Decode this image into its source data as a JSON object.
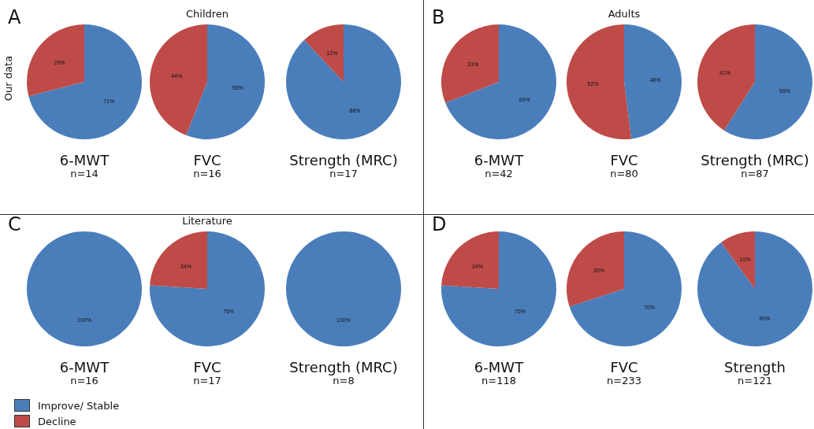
{
  "chart_data": [
    {
      "type": "pie",
      "title": "6-MWT",
      "subtitle": "n=14",
      "categories": [
        "Improve/ Stable",
        "Decline"
      ],
      "values": [
        71,
        29
      ],
      "colors": [
        "#4a7ebb",
        "#be4b48"
      ],
      "value_labels": [
        "71%",
        "29%"
      ],
      "annotations": [
        "A",
        "Children",
        "Our data"
      ],
      "legend": "bottom left"
    },
    {
      "type": "pie",
      "title": "FVC",
      "subtitle": "n=16",
      "categories": [
        null,
        null
      ],
      "values": [
        56,
        44
      ],
      "colors": [
        "#4a7ebb",
        "#be4b48"
      ],
      "value_labels": [
        "56%",
        "44%"
      ]
    },
    {
      "type": "pie",
      "title": "Strength (MRC)",
      "subtitle": "n=17",
      "categories": [
        null,
        null
      ],
      "values": [
        88,
        12
      ],
      "colors": [
        "#4a7ebb",
        "#be4b48"
      ],
      "value_labels": [
        "88%",
        "12%"
      ]
    },
    {
      "type": "pie",
      "title": "6-MWT",
      "subtitle": "n=42",
      "categories": [
        null,
        null
      ],
      "values": [
        69,
        31
      ],
      "colors": [
        "#4a7ebb",
        "#be4b48"
      ],
      "value_labels": [
        "69%",
        "31%"
      ],
      "annotations": [
        "B",
        "Adults"
      ]
    },
    {
      "type": "pie",
      "title": "FVC",
      "subtitle": "n=80",
      "categories": [
        null,
        null
      ],
      "values": [
        48,
        52
      ],
      "colors": [
        "#4a7ebb",
        "#be4b48"
      ],
      "value_labels": [
        "48%",
        "52%"
      ]
    },
    {
      "type": "pie",
      "title": "Strength (MRC)",
      "subtitle": "n=87",
      "categories": [
        null,
        null
      ],
      "values": [
        59,
        41
      ],
      "colors": [
        "#4a7ebb",
        "#be4b48"
      ],
      "value_labels": [
        "59%",
        "41%"
      ]
    },
    {
      "type": "pie",
      "title": "6-MWT",
      "subtitle": "n=16",
      "categories": [
        null
      ],
      "values": [
        100
      ],
      "colors": [
        "#4a7ebb"
      ],
      "value_labels": [
        "100%"
      ],
      "annotations": [
        "C",
        "Literature"
      ]
    },
    {
      "type": "pie",
      "title": "FVC",
      "subtitle": "n=17",
      "categories": [
        null,
        null
      ],
      "values": [
        76,
        24
      ],
      "colors": [
        "#4a7ebb",
        "#be4b48"
      ],
      "value_labels": [
        "76%",
        "24%"
      ]
    },
    {
      "type": "pie",
      "title": "Strength (MRC)",
      "subtitle": "n=8",
      "categories": [
        null
      ],
      "values": [
        100
      ],
      "colors": [
        "#4a7ebb"
      ],
      "value_labels": [
        "100%"
      ]
    },
    {
      "type": "pie",
      "title": "6-MWT",
      "subtitle": "n=118",
      "categories": [
        null,
        null
      ],
      "values": [
        76,
        24
      ],
      "colors": [
        "#4a7ebb",
        "#be4b48"
      ],
      "value_labels": [
        "76%",
        "24%"
      ],
      "annotations": [
        "D"
      ]
    },
    {
      "type": "pie",
      "title": "FVC",
      "subtitle": "n=233",
      "categories": [
        null,
        null
      ],
      "values": [
        70,
        30
      ],
      "colors": [
        "#4a7ebb",
        "#be4b48"
      ],
      "value_labels": [
        "70%",
        "30%"
      ]
    },
    {
      "type": "pie",
      "title": "Strength",
      "subtitle": "n=121",
      "categories": [
        null,
        null
      ],
      "values": [
        90,
        10
      ],
      "colors": [
        "#4a7ebb",
        "#be4b48"
      ],
      "value_labels": [
        "90%",
        "10%"
      ]
    }
  ]
}
